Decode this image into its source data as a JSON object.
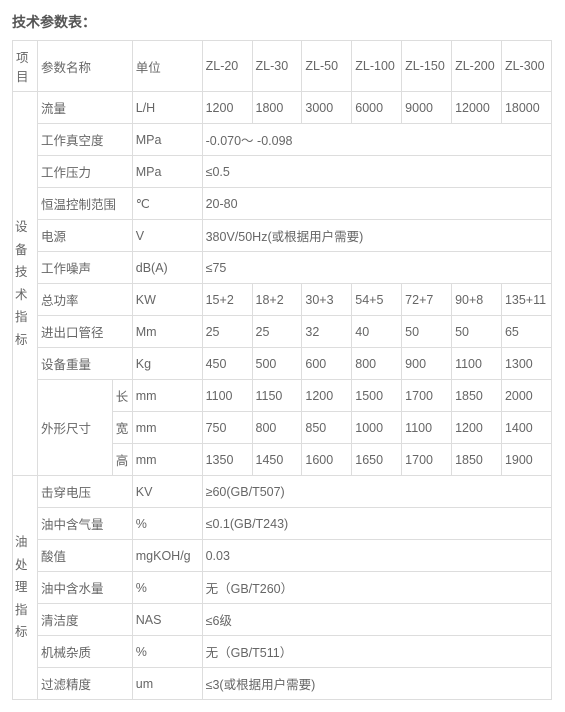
{
  "title": "技术参数表：",
  "hdr": {
    "project": "项目",
    "param": "参数名称",
    "unit": "单位",
    "m1": "ZL-20",
    "m2": "ZL-30",
    "m3": "ZL-50",
    "m4": "ZL-100",
    "m5": "ZL-150",
    "m6": "ZL-200",
    "m7": "ZL-300"
  },
  "cat1": "设备技术指标",
  "cat2": "油处理指标",
  "flow": {
    "name": "流量",
    "unit": "L/H",
    "v1": "1200",
    "v2": "1800",
    "v3": "3000",
    "v4": "6000",
    "v5": "9000",
    "v6": "12000",
    "v7": "18000"
  },
  "vacuum": {
    "name": "工作真空度",
    "unit": "MPa",
    "val": "-0.070～ -0.098"
  },
  "press": {
    "name": "工作压力",
    "unit": "MPa",
    "val": "≤0.5"
  },
  "temp": {
    "name": "恒温控制范围",
    "unit": "℃",
    "val": "20-80"
  },
  "power": {
    "name": "电源",
    "unit": "V",
    "val": "380V/50Hz(或根据用户需要)"
  },
  "noise": {
    "name": "工作噪声",
    "unit": "dB(A)",
    "val": "≤75"
  },
  "totalp": {
    "name": "总功率",
    "unit": "KW",
    "v1": "15+2",
    "v2": "18+2",
    "v3": "30+3",
    "v4": "54+5",
    "v5": "72+7",
    "v6": "90+8",
    "v7": "135+11"
  },
  "pipe": {
    "name": "进出口管径",
    "unit": "Mm",
    "v1": "25",
    "v2": "25",
    "v3": "32",
    "v4": "40",
    "v5": "50",
    "v6": "50",
    "v7": "65"
  },
  "weight": {
    "name": "设备重量",
    "unit": "Kg",
    "v1": "450",
    "v2": "500",
    "v3": "600",
    "v4": "800",
    "v5": "900",
    "v6": "1100",
    "v7": "1300"
  },
  "dims": {
    "name": "外形尺寸",
    "L": {
      "lbl": "长",
      "unit": "mm",
      "v1": "1100",
      "v2": "1150",
      "v3": "1200",
      "v4": "1500",
      "v5": "1700",
      "v6": "1850",
      "v7": "2000"
    },
    "W": {
      "lbl": "宽",
      "unit": "mm",
      "v1": "750",
      "v2": "800",
      "v3": "850",
      "v4": "1000",
      "v5": "1100",
      "v6": "1200",
      "v7": "1400"
    },
    "H": {
      "lbl": "高",
      "unit": "mm",
      "v1": "1350",
      "v2": "1450",
      "v3": "1600",
      "v4": "1650",
      "v5": "1700",
      "v6": "1850",
      "v7": "1900"
    }
  },
  "bdv": {
    "name": "击穿电压",
    "unit": "KV",
    "val": "≥60(GB/T507)"
  },
  "gas": {
    "name": "油中含气量",
    "unit": "%",
    "val": "≤0.1(GB/T243)"
  },
  "acid": {
    "name": "酸值",
    "unit": "mgKOH/g",
    "val": "0.03"
  },
  "water": {
    "name": "油中含水量",
    "unit": "%",
    "val": "无（GB/T260）"
  },
  "clean": {
    "name": "清洁度",
    "unit": "NAS",
    "val": "≤6级"
  },
  "mech": {
    "name": "机械杂质",
    "unit": "%",
    "val": "无（GB/T511）"
  },
  "filt": {
    "name": "过滤精度",
    "unit": "um",
    "val": "≤3(或根据用户需要)"
  }
}
